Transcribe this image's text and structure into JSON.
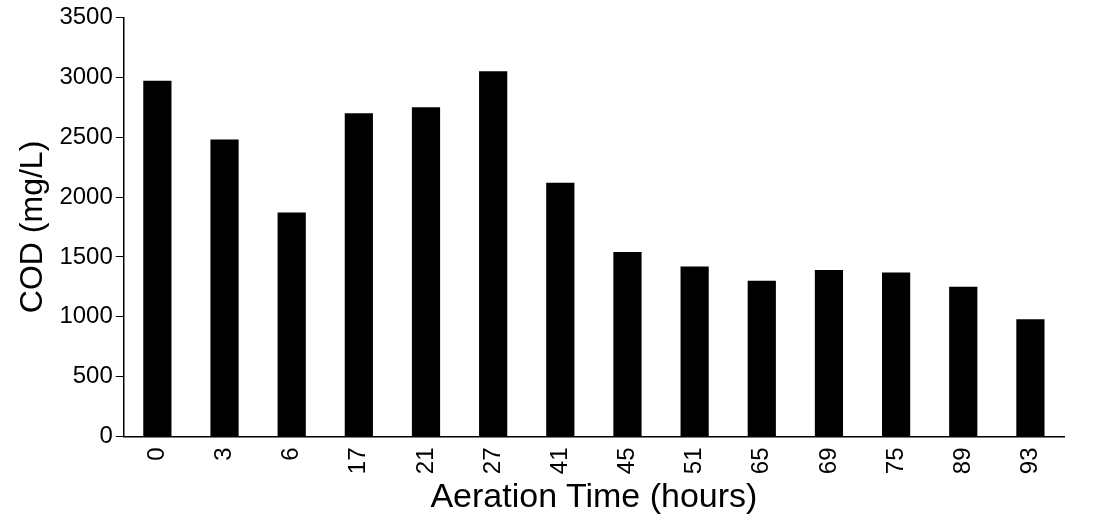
{
  "chart_data": {
    "type": "bar",
    "xlabel": "Aeration Time (hours)",
    "ylabel": "COD (mg/L)",
    "categories": [
      "0",
      "3",
      "6",
      "17",
      "21",
      "27",
      "41",
      "45",
      "51",
      "65",
      "69",
      "75",
      "89",
      "93"
    ],
    "values": [
      2970,
      2480,
      1870,
      2700,
      2750,
      3050,
      2120,
      1540,
      1420,
      1300,
      1390,
      1370,
      1250,
      980
    ],
    "color": "#000000",
    "ylim": [
      0,
      3500
    ],
    "yticks": [
      0,
      500,
      1000,
      1500,
      2000,
      2500,
      3000,
      3500
    ],
    "grid": false,
    "legend": false
  }
}
